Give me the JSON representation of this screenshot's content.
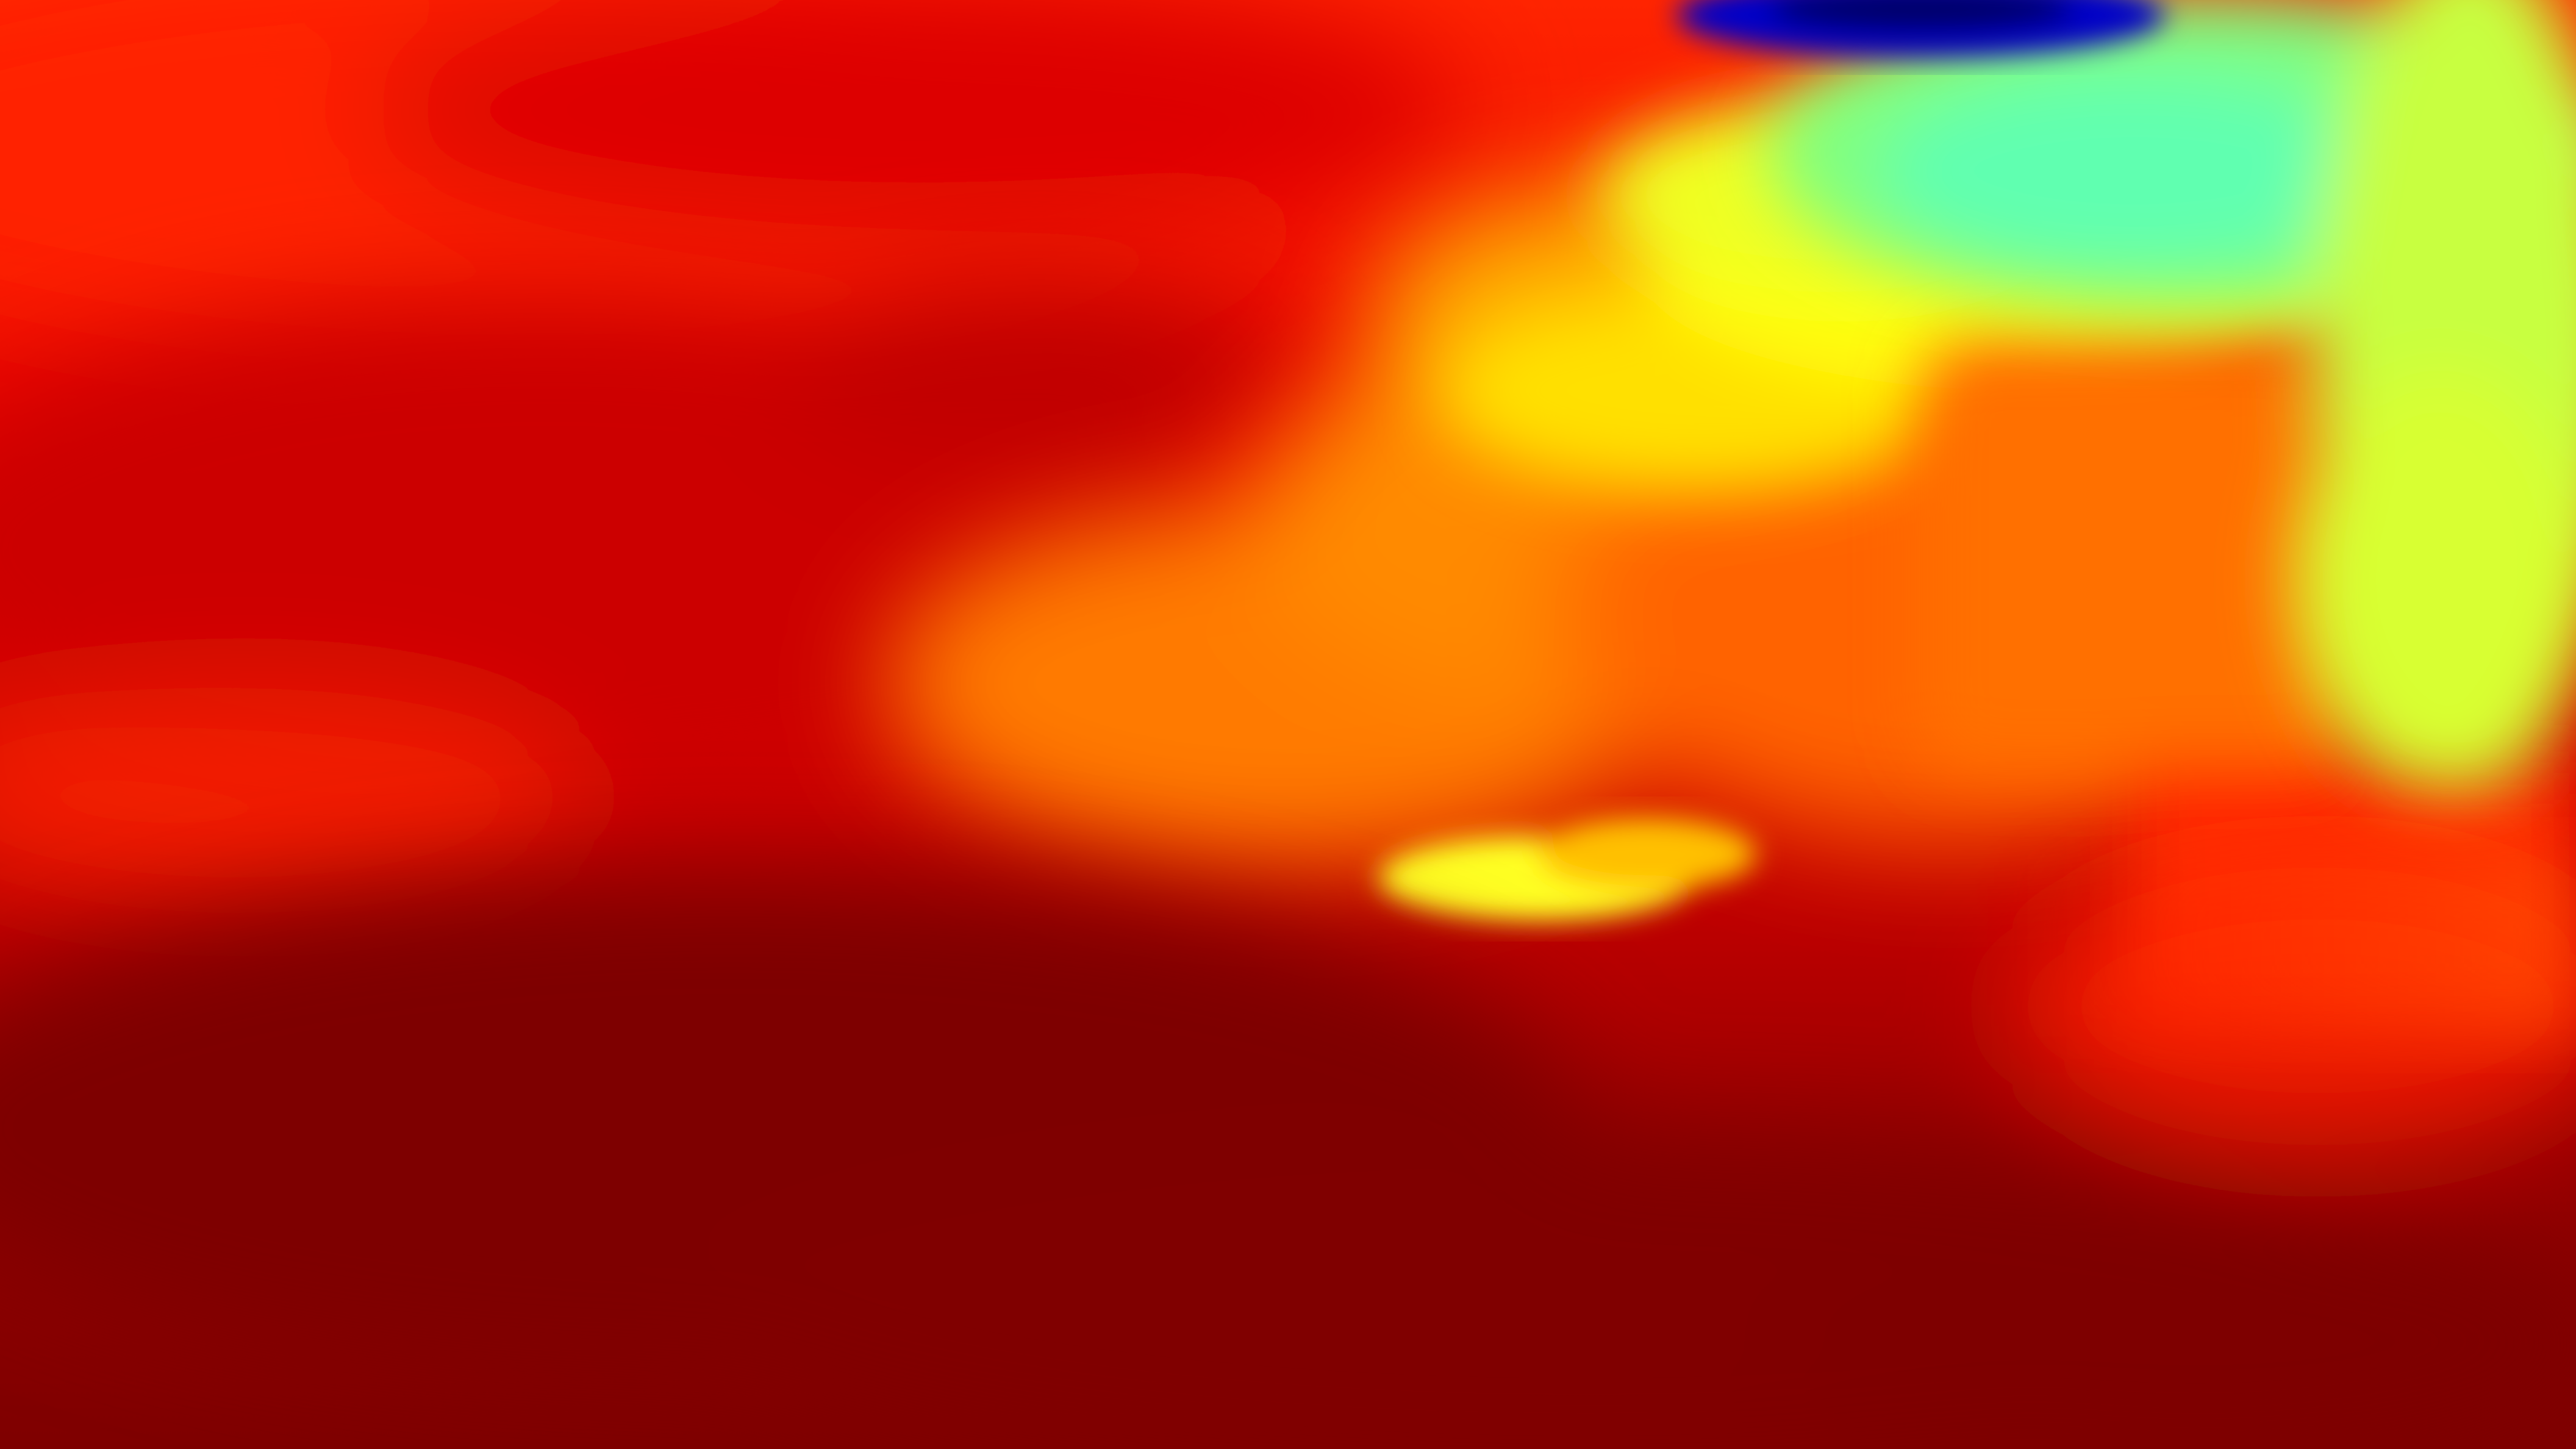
{
  "image": {
    "kind": "depth-map",
    "colormap": "jet",
    "palette": {
      "darkest_red": "#7e0000",
      "dark_red": "#a50000",
      "red": "#d40000",
      "bright_red": "#ff2000",
      "orange": "#ff8a00",
      "yellow": "#ffff10",
      "yellow_green": "#c8ff40",
      "cyan_green": "#70ffa0",
      "blue": "#0000c8",
      "navy": "#00006a"
    }
  }
}
